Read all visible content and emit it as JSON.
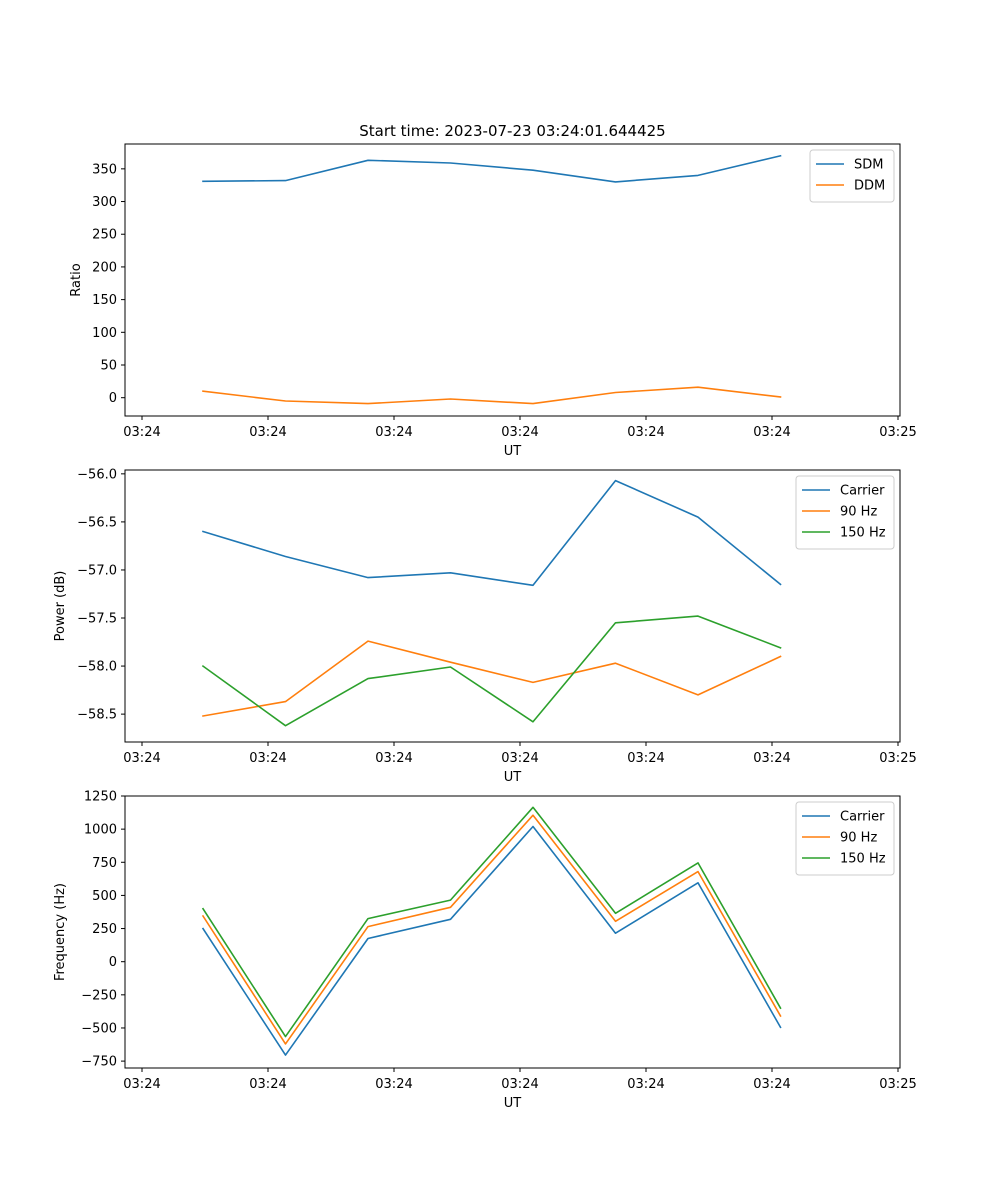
{
  "chart_data": [
    {
      "type": "line",
      "title": "Start time: 2023-07-23 03:24:01.644425",
      "xlabel": "UT",
      "ylabel": "Ratio",
      "x_ticks": [
        "03:24",
        "03:24",
        "03:24",
        "03:24",
        "03:24",
        "03:24",
        "03:24",
        "03:25"
      ],
      "y_ticks": [
        0,
        50,
        100,
        150,
        200,
        250,
        300,
        350
      ],
      "ylim": [
        -28,
        388
      ],
      "legend_position": "top-right",
      "series": [
        {
          "name": "SDM",
          "color": "#1f77b4",
          "values": [
            331,
            332,
            363,
            359,
            348,
            330,
            340,
            370
          ]
        },
        {
          "name": "DDM",
          "color": "#ff7f0e",
          "values": [
            10,
            -5,
            -9,
            -2,
            -9,
            8,
            16,
            1
          ]
        }
      ]
    },
    {
      "type": "line",
      "title": "",
      "xlabel": "UT",
      "ylabel": "Power (dB)",
      "x_ticks": [
        "03:24",
        "03:24",
        "03:24",
        "03:24",
        "03:24",
        "03:24",
        "03:24",
        "03:25"
      ],
      "y_ticks": [
        -56.0,
        -56.5,
        -57.0,
        -57.5,
        -58.0,
        -58.5
      ],
      "y_tick_labels": [
        "−56.0",
        "−56.5",
        "−57.0",
        "−57.5",
        "−58.0",
        "−58.5"
      ],
      "ylim": [
        -58.79,
        -55.96
      ],
      "legend_position": "top-right",
      "series": [
        {
          "name": "Carrier",
          "color": "#1f77b4",
          "values": [
            -56.6,
            -56.86,
            -57.08,
            -57.03,
            -57.16,
            -56.07,
            -56.45,
            -57.15
          ]
        },
        {
          "name": "90 Hz",
          "color": "#ff7f0e",
          "values": [
            -58.52,
            -58.37,
            -57.74,
            -57.96,
            -58.17,
            -57.97,
            -58.3,
            -57.9
          ]
        },
        {
          "name": "150 Hz",
          "color": "#2ca02c",
          "values": [
            -58.0,
            -58.62,
            -58.13,
            -58.01,
            -58.58,
            -57.55,
            -57.48,
            -57.81
          ]
        }
      ]
    },
    {
      "type": "line",
      "title": "",
      "xlabel": "UT",
      "ylabel": "Frequency (Hz)",
      "x_ticks": [
        "03:24",
        "03:24",
        "03:24",
        "03:24",
        "03:24",
        "03:24",
        "03:24",
        "03:25"
      ],
      "y_ticks": [
        1250,
        1000,
        750,
        500,
        250,
        0,
        -250,
        -500,
        -750
      ],
      "y_tick_labels": [
        "1250",
        "1000",
        "750",
        "500",
        "250",
        "0",
        "−250",
        "−500",
        "−750"
      ],
      "ylim": [
        -802,
        1250
      ],
      "legend_position": "top-right",
      "series": [
        {
          "name": "Carrier",
          "color": "#1f77b4",
          "values": [
            250,
            -705,
            175,
            320,
            1020,
            215,
            595,
            -495
          ]
        },
        {
          "name": "90 Hz",
          "color": "#ff7f0e",
          "values": [
            345,
            -620,
            265,
            410,
            1105,
            305,
            680,
            -410
          ]
        },
        {
          "name": "150 Hz",
          "color": "#2ca02c",
          "values": [
            400,
            -565,
            325,
            465,
            1165,
            365,
            745,
            -350
          ]
        }
      ]
    }
  ]
}
